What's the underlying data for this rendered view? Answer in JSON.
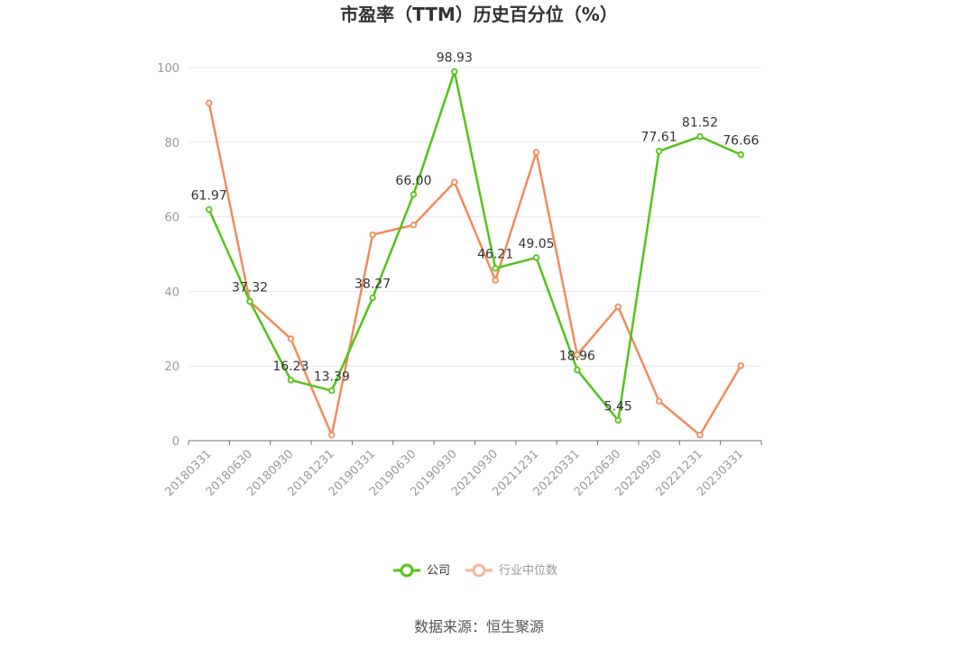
{
  "chart_data": {
    "type": "line",
    "title": "市盈率（TTM）历史百分位（%）",
    "categories": [
      "20180331",
      "20180630",
      "20180930",
      "20181231",
      "20190331",
      "20190630",
      "20190930",
      "20210930",
      "20211231",
      "20220331",
      "20220630",
      "20220930",
      "20221231",
      "20230331"
    ],
    "series": [
      {
        "name": "公司",
        "color": "#52c41a",
        "values": [
          61.97,
          37.32,
          16.23,
          13.39,
          38.27,
          66.0,
          98.93,
          46.21,
          49.05,
          18.96,
          5.45,
          77.61,
          81.52,
          76.66
        ],
        "labels": [
          "61.97",
          "37.32",
          "16.23",
          "13.39",
          "38.27",
          "66.00",
          "98.93",
          "46.21",
          "49.05",
          "18.96",
          "5.45",
          "77.61",
          "81.52",
          "76.66"
        ]
      },
      {
        "name": "行业中位数",
        "color": "#f08c5a",
        "values": [
          90.5,
          37.3,
          27.3,
          1.5,
          55.2,
          57.8,
          69.3,
          43.0,
          77.3,
          23.0,
          35.9,
          10.6,
          1.5,
          20.1
        ]
      }
    ],
    "ylim": [
      0,
      100
    ],
    "yticks": [
      "0",
      "20",
      "40",
      "60",
      "80",
      "100"
    ],
    "grid": true,
    "legend_position": "bottom"
  },
  "source_text": "数据来源：恒生聚源"
}
